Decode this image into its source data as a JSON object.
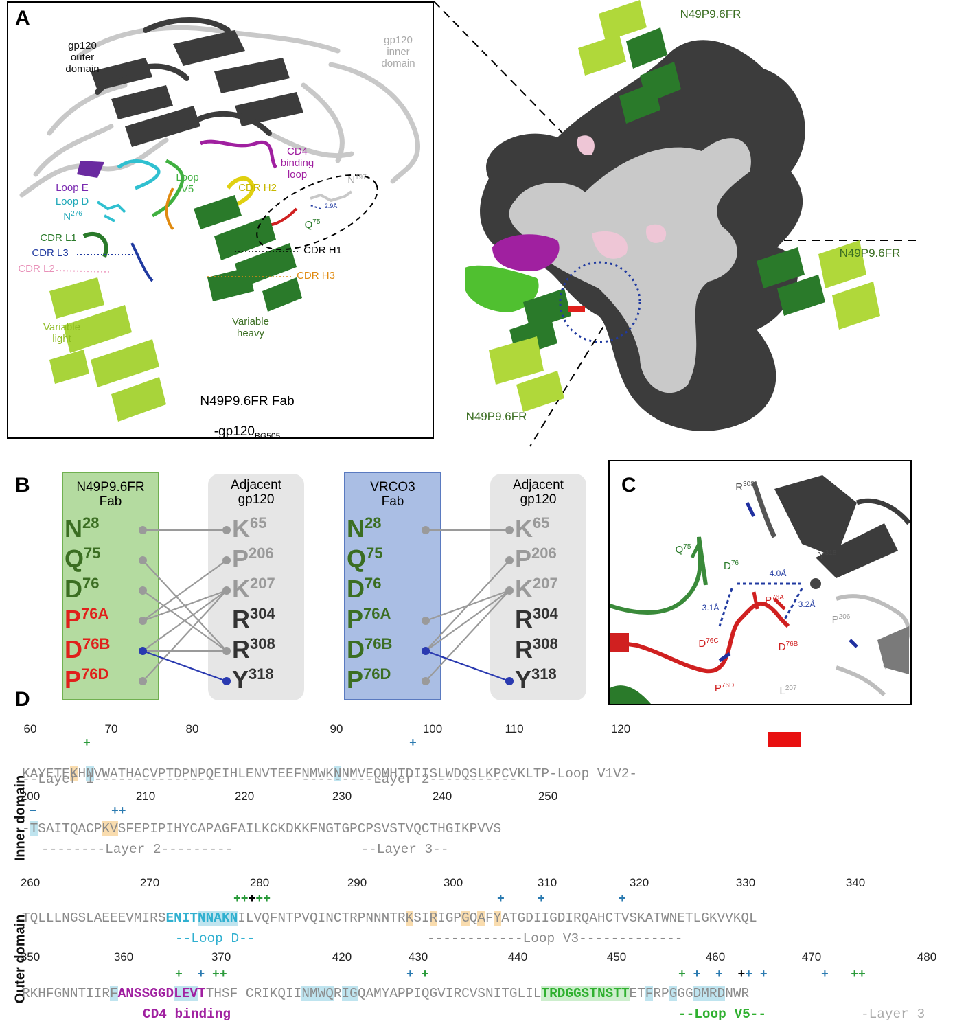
{
  "panels": {
    "a": "A",
    "b": "B",
    "c": "C",
    "d": "D"
  },
  "panel_a": {
    "gp120_outer": "gp120\nouter\ndomain",
    "gp120_inner": "gp120\ninner\ndomain",
    "cd4_loop": "CD4\nbinding\nloop",
    "loop_v5": "Loop\nV5",
    "cdr_h2": "CDR H2",
    "n197": "N",
    "n197_sup": "197",
    "loop_e": "Loop E",
    "loop_d": "Loop D",
    "n276": "N",
    "n276_sup": "276",
    "q75": "Q",
    "q75_sup": "75",
    "dist": "2.9Å",
    "cdr_l1": "CDR L1",
    "cdr_l3": "CDR L3",
    "cdr_h1": "CDR H1",
    "cdr_l2": "CDR L2",
    "cdr_h3": "CDR H3",
    "var_light": "Variable\nlight",
    "var_heavy": "Variable\nheavy",
    "caption1": "N49P9.6FR Fab",
    "caption2": "-gp120",
    "caption2_sub": "BG505"
  },
  "panel_a2": {
    "label_top": "N49P9.6FR",
    "label_right": "N49P9.6FR",
    "label_bottom": "N49P9.6FR"
  },
  "panel_b": {
    "left_box1_title": "N49P9.6FR\nFab",
    "right_box1_title": "Adjacent\ngp120",
    "left_box2_title": "VRCO3\nFab",
    "right_box2_title": "Adjacent\ngp120",
    "fab1_residues": [
      {
        "name": "N",
        "sup": "28",
        "color": "#3b6e22"
      },
      {
        "name": "Q",
        "sup": "75",
        "color": "#3b6e22"
      },
      {
        "name": "D",
        "sup": "76",
        "color": "#3b6e22"
      },
      {
        "name": "P",
        "sup": "76A",
        "color": "#e0201b"
      },
      {
        "name": "D",
        "sup": "76B",
        "color": "#e0201b"
      },
      {
        "name": "P",
        "sup": "76D",
        "color": "#e0201b"
      }
    ],
    "fab2_residues": [
      {
        "name": "N",
        "sup": "28",
        "color": "#3b6e22"
      },
      {
        "name": "Q",
        "sup": "75",
        "color": "#3b6e22"
      },
      {
        "name": "D",
        "sup": "76",
        "color": "#3b6e22"
      },
      {
        "name": "P",
        "sup": "76A",
        "color": "#3b6e22"
      },
      {
        "name": "D",
        "sup": "76B",
        "color": "#3b6e22"
      },
      {
        "name": "P",
        "sup": "76D",
        "color": "#3b6e22"
      }
    ],
    "gp120_residues": [
      {
        "name": "K",
        "sup": "65",
        "color": "#9a9a9a"
      },
      {
        "name": "P",
        "sup": "206",
        "color": "#9a9a9a"
      },
      {
        "name": "K",
        "sup": "207",
        "color": "#9a9a9a"
      },
      {
        "name": "R",
        "sup": "304",
        "color": "#333333"
      },
      {
        "name": "R",
        "sup": "308",
        "color": "#333333"
      },
      {
        "name": "Y",
        "sup": "318",
        "color": "#333333"
      }
    ]
  },
  "panel_c": {
    "r308": "R",
    "r308_sup": "308",
    "q75": "Q",
    "q75_sup": "75",
    "d76": "D",
    "d76_sup": "76",
    "y318": "Y",
    "y318_sup": "318",
    "d40": "4.0Å",
    "d31": "3.1Å",
    "d32": "3.2Å",
    "p76a": "P",
    "p76a_sup": "76A",
    "p206": "P",
    "p206_sup": "206",
    "d76c": "D",
    "d76c_sup": "76C",
    "d76b": "D",
    "d76b_sup": "76B",
    "p76d": "P",
    "p76d_sup": "76D",
    "l207": "L",
    "l207_sup": "207"
  },
  "panel_d": {
    "side_inner": "Inner domain",
    "side_outer": "Outer domain",
    "row1_ruler": [
      "60",
      "70",
      "80",
      "90",
      "100",
      "110",
      "120"
    ],
    "row1_seq": "KAYETEKHNVWATHACVPTDPNPQEIHLENVTEEFNMWKNNMVEQMHTDIISLWDQSLKPCVKLTP-Loop V1V2-",
    "row1_layer": "--Layer 1---------------           ---------Layer 2-----------",
    "row2_ruler": [
      "200",
      "210",
      "220",
      "230",
      "240",
      "250"
    ],
    "row2_seq": "-TSAITQACPKVSFEPIPIHYCAPAGFAILKCKDKKFNGTGPCPSVSTVQCTHGIKPVVS",
    "row2_layer": "--------Layer 2---------                --Layer 3--",
    "row3_ruler": [
      "260",
      "270",
      "280",
      "290",
      "300",
      "310",
      "320",
      "330",
      "340"
    ],
    "row3_seq": "TQLLLNGSLAEEEVMIRSENITNNAKNILVQFNTPVQINCTRPNNNTRKSIRIGPGQAFYATGDIIGDIRQAHCTVSKATWNETLGKVVKQL",
    "row3_loopd": "--Loop D--",
    "row3_loopv3": "------------Loop V3-------------",
    "row4_ruler": [
      "350",
      "360",
      "370",
      "420",
      "430",
      "440",
      "450",
      "460",
      "470",
      "480"
    ],
    "row4_seq": "RKHFGNNTIIRFANSSGGDLEVTTHSF CRIKQIINMWQRIGQAMYAPPIQGVIRCVSNITGLILTRDGGSTNSTTETFRPGGGDMRDNWR",
    "row4_cd4": "CD4 binding",
    "row4_loopv5": "--Loop V5--",
    "row4_layer3": "-Layer 3"
  }
}
